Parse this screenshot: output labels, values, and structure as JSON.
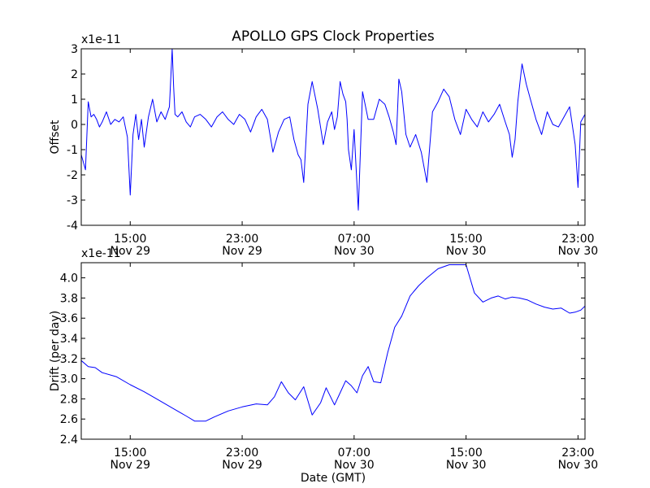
{
  "chart_data": [
    {
      "type": "line",
      "title": "APOLLO GPS Clock Properties",
      "ylabel": "Offset",
      "xlabel": "",
      "y_multiplier_label": "x1e-11",
      "ylim": [
        -4,
        3
      ],
      "y_ticks": [
        "-4",
        "-3",
        "-2",
        "-1",
        "0",
        "1",
        "2",
        "3"
      ],
      "x_range_hours": [
        11.5,
        47.5
      ],
      "x_ticks": [
        {
          "hour": 15,
          "time": "15:00",
          "date": "Nov 29"
        },
        {
          "hour": 23,
          "time": "23:00",
          "date": "Nov 29"
        },
        {
          "hour": 31,
          "time": "07:00",
          "date": "Nov 30"
        },
        {
          "hour": 39,
          "time": "15:00",
          "date": "Nov 30"
        },
        {
          "hour": 47,
          "time": "23:00",
          "date": "Nov 30"
        }
      ],
      "grid": false,
      "color": "#0000ff",
      "series": [
        {
          "x": [
            11.5,
            11.8,
            12.0,
            12.2,
            12.4,
            12.6,
            12.8,
            13.0,
            13.3,
            13.6,
            13.9,
            14.2,
            14.5,
            14.8,
            15.0,
            15.2,
            15.4,
            15.6,
            15.8,
            16.0,
            16.3,
            16.6,
            16.9,
            17.2,
            17.5,
            17.8,
            18.0,
            18.1,
            18.2,
            18.4,
            18.7,
            19.0,
            19.3,
            19.6,
            20.0,
            20.4,
            20.8,
            21.2,
            21.6,
            22.0,
            22.4,
            22.8,
            23.2,
            23.6,
            24.0,
            24.4,
            24.8,
            25.2,
            25.6,
            26.0,
            26.4,
            26.7,
            27.0,
            27.2,
            27.4,
            27.7,
            28.0,
            28.4,
            28.8,
            29.1,
            29.4,
            29.6,
            29.8,
            30.0,
            30.2,
            30.4,
            30.5,
            30.6,
            30.8,
            31.0,
            31.3,
            31.6,
            32.0,
            32.4,
            32.8,
            33.2,
            33.5,
            33.8,
            34.0,
            34.2,
            34.4,
            34.7,
            35.0,
            35.4,
            35.8,
            36.2,
            36.6,
            37.0,
            37.4,
            37.8,
            38.2,
            38.6,
            39.0,
            39.4,
            39.8,
            40.2,
            40.6,
            41.0,
            41.4,
            41.8,
            42.1,
            42.3,
            42.5,
            42.7,
            43.0,
            43.3,
            43.6,
            44.0,
            44.4,
            44.8,
            45.2,
            45.6,
            46.0,
            46.4,
            46.8,
            47.0,
            47.2,
            47.5
          ],
          "values": [
            -1.2,
            -1.8,
            0.9,
            0.3,
            0.4,
            0.2,
            -0.1,
            0.1,
            0.5,
            0.0,
            0.2,
            0.1,
            0.3,
            -0.5,
            -2.8,
            -0.4,
            0.4,
            -0.6,
            0.2,
            -0.9,
            0.3,
            1.0,
            0.1,
            0.5,
            0.2,
            0.7,
            3.0,
            1.5,
            0.4,
            0.3,
            0.5,
            0.1,
            -0.1,
            0.3,
            0.4,
            0.2,
            -0.1,
            0.3,
            0.5,
            0.2,
            0.0,
            0.4,
            0.2,
            -0.3,
            0.3,
            0.6,
            0.2,
            -1.1,
            -0.3,
            0.2,
            0.3,
            -0.6,
            -1.2,
            -1.4,
            -2.3,
            0.8,
            1.7,
            0.6,
            -0.8,
            0.1,
            0.5,
            -0.2,
            0.3,
            1.7,
            1.2,
            0.9,
            0.2,
            -1.0,
            -1.8,
            -0.2,
            -3.4,
            1.3,
            0.2,
            0.2,
            1.0,
            0.8,
            0.3,
            -0.3,
            -0.8,
            1.8,
            1.3,
            -0.4,
            -0.9,
            -0.4,
            -1.1,
            -2.3,
            0.5,
            0.9,
            1.4,
            1.1,
            0.2,
            -0.4,
            0.6,
            0.2,
            -0.1,
            0.5,
            0.1,
            0.4,
            0.8,
            0.1,
            -0.4,
            -1.3,
            -0.6,
            0.9,
            2.4,
            1.6,
            1.0,
            0.2,
            -0.4,
            0.5,
            0.0,
            -0.1,
            0.3,
            0.7,
            -0.8,
            -2.5,
            0.1,
            0.4
          ]
        }
      ]
    },
    {
      "type": "line",
      "title": "",
      "ylabel": "Drift (per day)",
      "xlabel": "Date (GMT)",
      "y_multiplier_label": "x1e-11",
      "ylim": [
        2.4,
        4.15
      ],
      "y_ticks": [
        "2.4",
        "2.6",
        "2.8",
        "3.0",
        "3.2",
        "3.4",
        "3.6",
        "3.8",
        "4.0"
      ],
      "x_range_hours": [
        11.5,
        47.5
      ],
      "x_ticks": [
        {
          "hour": 15,
          "time": "15:00",
          "date": "Nov 29"
        },
        {
          "hour": 23,
          "time": "23:00",
          "date": "Nov 29"
        },
        {
          "hour": 31,
          "time": "07:00",
          "date": "Nov 30"
        },
        {
          "hour": 39,
          "time": "15:00",
          "date": "Nov 30"
        },
        {
          "hour": 47,
          "time": "23:00",
          "date": "Nov 30"
        }
      ],
      "grid": false,
      "color": "#0000ff",
      "series": [
        {
          "x": [
            11.5,
            12.0,
            12.5,
            13.0,
            14.0,
            15.0,
            16.0,
            17.0,
            18.0,
            19.0,
            19.6,
            20.4,
            21.0,
            22.0,
            23.0,
            24.0,
            24.8,
            25.3,
            25.8,
            26.3,
            26.8,
            27.4,
            28.0,
            28.6,
            29.0,
            29.6,
            30.0,
            30.4,
            30.8,
            31.2,
            31.6,
            32.0,
            32.4,
            32.9,
            33.4,
            33.9,
            34.4,
            35.0,
            35.6,
            36.2,
            37.0,
            37.8,
            38.4,
            39.0,
            39.6,
            40.2,
            40.8,
            41.3,
            41.8,
            42.3,
            42.8,
            43.4,
            44.0,
            44.6,
            45.2,
            45.8,
            46.4,
            46.8,
            47.2,
            47.5
          ],
          "values": [
            3.18,
            3.12,
            3.11,
            3.06,
            3.02,
            2.94,
            2.87,
            2.79,
            2.71,
            2.63,
            2.58,
            2.58,
            2.62,
            2.68,
            2.72,
            2.75,
            2.74,
            2.82,
            2.97,
            2.86,
            2.79,
            2.92,
            2.64,
            2.76,
            2.91,
            2.74,
            2.86,
            2.98,
            2.93,
            2.86,
            3.03,
            3.12,
            2.97,
            2.96,
            3.26,
            3.51,
            3.62,
            3.82,
            3.92,
            4.0,
            4.09,
            4.13,
            4.13,
            4.13,
            3.85,
            3.76,
            3.8,
            3.82,
            3.79,
            3.81,
            3.8,
            3.78,
            3.74,
            3.71,
            3.69,
            3.7,
            3.65,
            3.66,
            3.68,
            3.72
          ]
        }
      ]
    }
  ]
}
